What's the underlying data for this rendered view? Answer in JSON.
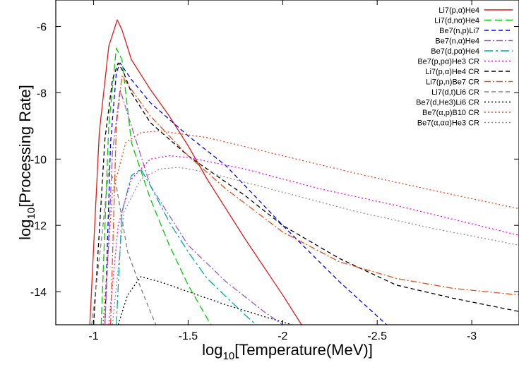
{
  "chart_data": {
    "type": "line",
    "title": "",
    "xlabel": {
      "prefix": "log",
      "sub": "10",
      "rest": "[Temperature(MeV)]"
    },
    "ylabel": {
      "prefix": "log",
      "sub": "10",
      "rest": "[Processing Rate]"
    },
    "xlim": [
      -0.8,
      -3.25
    ],
    "ylim": [
      -15,
      -5.2
    ],
    "xticks": [
      {
        "value": -1,
        "label": "-1"
      },
      {
        "value": -1.5,
        "label": "-1.5"
      },
      {
        "value": -2,
        "label": "-2"
      },
      {
        "value": -2.5,
        "label": "-2.5"
      },
      {
        "value": -3,
        "label": "-3"
      }
    ],
    "yticks": [
      {
        "value": -6,
        "label": "-6"
      },
      {
        "value": -8,
        "label": "-8"
      },
      {
        "value": -10,
        "label": "-10"
      },
      {
        "value": -12,
        "label": "-12"
      },
      {
        "value": -14,
        "label": "-14"
      }
    ],
    "grid": false,
    "legend_position": "top-right",
    "series": [
      {
        "name": "Li7(p,α)He4",
        "color": "#e41a1c",
        "dash": "solid",
        "points": [
          [
            -0.98,
            -15
          ],
          [
            -1.03,
            -9.2
          ],
          [
            -1.08,
            -6.6
          ],
          [
            -1.125,
            -5.8
          ],
          [
            -1.15,
            -6.1
          ],
          [
            -1.2,
            -7.0
          ],
          [
            -1.3,
            -7.9
          ],
          [
            -1.4,
            -8.7
          ],
          [
            -1.5,
            -9.6
          ],
          [
            -1.6,
            -10.6
          ],
          [
            -1.8,
            -12.4
          ],
          [
            -2.0,
            -14.1
          ],
          [
            -2.1,
            -15
          ]
        ]
      },
      {
        "name": "Li7(d,nα)He4",
        "color": "#00cc00",
        "dash": "long-dash",
        "points": [
          [
            -1.04,
            -15
          ],
          [
            -1.08,
            -9.0
          ],
          [
            -1.12,
            -6.65
          ],
          [
            -1.15,
            -7.0
          ],
          [
            -1.2,
            -9.5
          ],
          [
            -1.3,
            -11.2
          ],
          [
            -1.4,
            -12.6
          ],
          [
            -1.5,
            -13.8
          ],
          [
            -1.6,
            -14.8
          ],
          [
            -1.62,
            -15
          ]
        ]
      },
      {
        "name": "Be7(n,p)Li7",
        "color": "#0000ff",
        "dash": "dash",
        "points": [
          [
            -1.06,
            -15
          ],
          [
            -1.09,
            -9.5
          ],
          [
            -1.12,
            -7.4
          ],
          [
            -1.14,
            -7.1
          ],
          [
            -1.2,
            -7.6
          ],
          [
            -1.3,
            -8.3
          ],
          [
            -1.5,
            -9.3
          ],
          [
            -1.7,
            -10.2
          ],
          [
            -2.0,
            -12.0
          ],
          [
            -2.3,
            -13.7
          ],
          [
            -2.55,
            -15
          ]
        ]
      },
      {
        "name": "Be7(n,α)He4",
        "color": "#9b59d0",
        "dash": "dash-dot",
        "points": [
          [
            -1.06,
            -15
          ],
          [
            -1.1,
            -9.8
          ],
          [
            -1.14,
            -7.9
          ],
          [
            -1.2,
            -9.0
          ],
          [
            -1.3,
            -10.8
          ],
          [
            -1.5,
            -12.6
          ],
          [
            -1.7,
            -13.7
          ],
          [
            -1.9,
            -14.6
          ],
          [
            -2.0,
            -15
          ]
        ]
      },
      {
        "name": "Be7(d,pα)He4",
        "color": "#00aaaa",
        "dash": "long-dash-dot",
        "points": [
          [
            -1.12,
            -15
          ],
          [
            -1.15,
            -11.6
          ],
          [
            -1.2,
            -10.5
          ],
          [
            -1.25,
            -10.3
          ],
          [
            -1.3,
            -10.8
          ],
          [
            -1.4,
            -11.9
          ],
          [
            -1.5,
            -12.8
          ],
          [
            -1.6,
            -13.6
          ],
          [
            -1.8,
            -14.7
          ],
          [
            -1.86,
            -15
          ]
        ]
      },
      {
        "name": "Be7(p,pα)He3 CR",
        "color": "#ff00ff",
        "dash": "dot",
        "points": [
          [
            -1.08,
            -15
          ],
          [
            -1.13,
            -12.0
          ],
          [
            -1.2,
            -10.6
          ],
          [
            -1.3,
            -10.0
          ],
          [
            -1.4,
            -9.9
          ],
          [
            -1.5,
            -9.95
          ],
          [
            -1.8,
            -10.3
          ],
          [
            -2.2,
            -10.9
          ],
          [
            -2.6,
            -11.4
          ],
          [
            -3.25,
            -12.3
          ]
        ]
      },
      {
        "name": "Li7(p,α)He4 CR",
        "color": "#000000",
        "dash": "dash",
        "points": [
          [
            -1.0,
            -15
          ],
          [
            -1.06,
            -9.4
          ],
          [
            -1.1,
            -7.6
          ],
          [
            -1.13,
            -7.1
          ],
          [
            -1.16,
            -7.4
          ],
          [
            -1.2,
            -8.0
          ],
          [
            -1.3,
            -8.9
          ],
          [
            -1.5,
            -9.9
          ],
          [
            -1.8,
            -11.1
          ],
          [
            -2.0,
            -12.0
          ],
          [
            -2.3,
            -13.0
          ],
          [
            -2.6,
            -13.8
          ],
          [
            -2.9,
            -14.2
          ],
          [
            -3.25,
            -14.6
          ]
        ]
      },
      {
        "name": "Li7(p,n)Be7 CR",
        "color": "#e8501c",
        "dash": "dash-dot",
        "points": [
          [
            -1.09,
            -15
          ],
          [
            -1.12,
            -9.0
          ],
          [
            -1.15,
            -7.5
          ],
          [
            -1.2,
            -7.9
          ],
          [
            -1.3,
            -8.7
          ],
          [
            -1.5,
            -9.9
          ],
          [
            -1.7,
            -10.9
          ],
          [
            -2.0,
            -12.2
          ],
          [
            -2.3,
            -13.1
          ],
          [
            -2.6,
            -13.6
          ],
          [
            -2.9,
            -13.9
          ],
          [
            -3.25,
            -14.1
          ]
        ]
      },
      {
        "name": "Li7(d,t)Li6 CR",
        "color": "#808080",
        "dash": "dash",
        "points": [
          [
            -0.99,
            -15
          ],
          [
            -1.05,
            -12.0
          ],
          [
            -1.08,
            -10.3
          ],
          [
            -1.12,
            -10.8
          ],
          [
            -1.18,
            -12.8
          ],
          [
            -1.25,
            -13.9
          ],
          [
            -1.3,
            -14.6
          ],
          [
            -1.33,
            -15
          ]
        ]
      },
      {
        "name": "Be7(d,He3)Li6 CR",
        "color": "#000000",
        "dash": "dot",
        "points": [
          [
            -1.13,
            -15
          ],
          [
            -1.18,
            -14.1
          ],
          [
            -1.25,
            -13.55
          ],
          [
            -1.35,
            -13.7
          ],
          [
            -1.5,
            -14.0
          ],
          [
            -1.7,
            -14.4
          ],
          [
            -1.9,
            -14.75
          ],
          [
            -2.05,
            -15
          ]
        ]
      },
      {
        "name": "Be7(α,p)B10 CR",
        "color": "#f04020",
        "dash": "dot",
        "points": [
          [
            -1.05,
            -15
          ],
          [
            -1.1,
            -11.0
          ],
          [
            -1.17,
            -9.5
          ],
          [
            -1.25,
            -9.2
          ],
          [
            -1.35,
            -9.15
          ],
          [
            -1.6,
            -9.35
          ],
          [
            -2.0,
            -9.9
          ],
          [
            -2.4,
            -10.45
          ],
          [
            -2.8,
            -10.95
          ],
          [
            -3.25,
            -11.5
          ]
        ]
      },
      {
        "name": "Be7(α,αα)He3 CR",
        "color": "#909090",
        "dash": "dot",
        "points": [
          [
            -1.1,
            -15
          ],
          [
            -1.16,
            -11.6
          ],
          [
            -1.25,
            -10.6
          ],
          [
            -1.35,
            -10.3
          ],
          [
            -1.45,
            -10.25
          ],
          [
            -1.6,
            -10.4
          ],
          [
            -2.0,
            -11.0
          ],
          [
            -2.4,
            -11.6
          ],
          [
            -2.8,
            -12.1
          ],
          [
            -3.25,
            -12.6
          ]
        ]
      }
    ]
  }
}
